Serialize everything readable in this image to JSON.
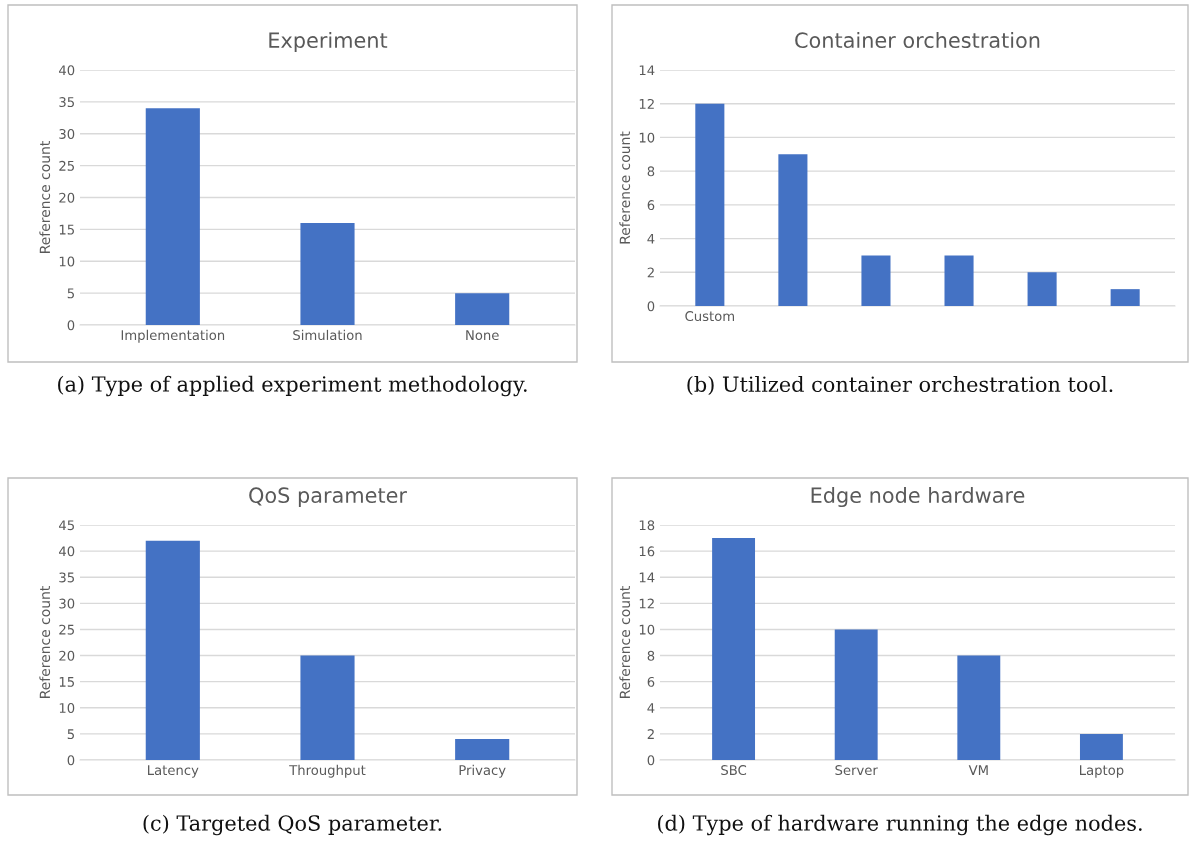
{
  "chart_data": [
    {
      "type": "bar",
      "title": "Experiment",
      "ylabel": "Reference count",
      "categories": [
        "Implementation",
        "Simulation",
        "None"
      ],
      "values": [
        34,
        16,
        5
      ],
      "color": "#4472c4",
      "ylim": [
        0,
        40
      ],
      "yticks": [
        0,
        5,
        10,
        15,
        20,
        25,
        30,
        35,
        40
      ],
      "grid": "y",
      "annotations": [
        "(a) Type of applied experiment methodology."
      ]
    },
    {
      "type": "bar",
      "title": "Container orchestration",
      "ylabel": "Reference count",
      "categories": [
        "Custom",
        null,
        null,
        null,
        null,
        null
      ],
      "values": [
        12,
        9,
        3,
        3,
        2,
        1
      ],
      "color": "#4472c4",
      "ylim": [
        0,
        14
      ],
      "yticks": [
        0,
        2,
        4,
        6,
        8,
        10,
        12,
        14
      ],
      "grid": "y",
      "annotations": [
        "(b) Utilized container orchestration tool."
      ]
    },
    {
      "type": "bar",
      "title": "QoS parameter",
      "ylabel": "Reference count",
      "categories": [
        "Latency",
        "Throughput",
        "Privacy"
      ],
      "values": [
        42,
        20,
        4
      ],
      "color": "#4472c4",
      "ylim": [
        0,
        45
      ],
      "yticks": [
        0,
        5,
        10,
        15,
        20,
        25,
        30,
        35,
        40,
        45
      ],
      "grid": "y",
      "annotations": [
        "(c) Targeted QoS parameter."
      ]
    },
    {
      "type": "bar",
      "title": "Edge node hardware",
      "ylabel": "Reference count",
      "categories": [
        "SBC",
        "Server",
        "VM",
        "Laptop"
      ],
      "values": [
        17,
        10,
        8,
        2
      ],
      "color": "#4472c4",
      "ylim": [
        0,
        18
      ],
      "yticks": [
        0,
        2,
        4,
        6,
        8,
        10,
        12,
        14,
        16,
        18
      ],
      "grid": "y",
      "annotations": [
        "(d) Type of hardware running the edge nodes."
      ]
    }
  ]
}
